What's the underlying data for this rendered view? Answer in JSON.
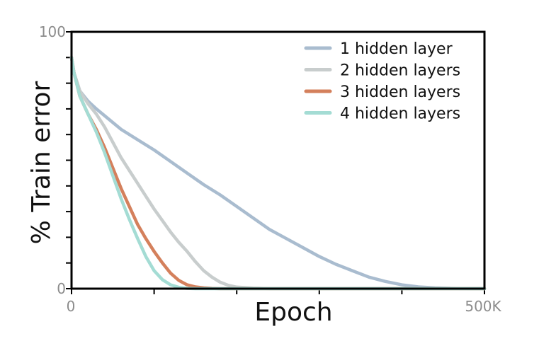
{
  "chart_data": {
    "type": "line",
    "xlabel": "Epoch",
    "ylabel": "% Train error",
    "xlim": [
      0,
      500000
    ],
    "ylim": [
      0,
      100
    ],
    "x_ticks": [
      0,
      100000,
      200000,
      300000,
      400000,
      500000
    ],
    "x_tick_labels": [
      "0",
      "",
      "",
      "",
      "",
      "500K"
    ],
    "y_ticks": [
      0,
      10,
      20,
      30,
      40,
      50,
      60,
      70,
      80,
      90,
      100
    ],
    "y_tick_labels": [
      "0",
      "",
      "",
      "",
      "",
      "",
      "",
      "",
      "",
      "",
      "100"
    ],
    "legend_position": "top-right",
    "series": [
      {
        "name": "1 hidden layer",
        "color": "#a9bccf",
        "x": [
          0,
          3000,
          10000,
          20000,
          30000,
          45000,
          60000,
          80000,
          100000,
          120000,
          140000,
          160000,
          180000,
          200000,
          220000,
          240000,
          260000,
          280000,
          300000,
          320000,
          340000,
          360000,
          380000,
          400000,
          420000,
          440000,
          460000,
          480000,
          500000
        ],
        "y": [
          90,
          84,
          77,
          73,
          70,
          66,
          62,
          58,
          54,
          49.5,
          45,
          40.5,
          36.5,
          32,
          27.5,
          23,
          19.5,
          16,
          12.5,
          9.5,
          7,
          4.5,
          2.8,
          1.5,
          0.7,
          0.3,
          0.1,
          0,
          0
        ]
      },
      {
        "name": "2 hidden layers",
        "color": "#c8cdcd",
        "x": [
          0,
          3000,
          10000,
          20000,
          30000,
          40000,
          50000,
          60000,
          70000,
          80000,
          90000,
          100000,
          110000,
          120000,
          130000,
          140000,
          150000,
          160000,
          170000,
          180000,
          190000,
          200000,
          220000,
          240000,
          260000,
          300000,
          400000,
          500000
        ],
        "y": [
          90,
          84,
          77,
          72,
          68,
          63,
          57,
          51,
          46,
          41,
          36,
          31,
          26.5,
          22,
          18,
          14.5,
          10.5,
          7,
          4.5,
          2.5,
          1.3,
          0.6,
          0.2,
          0,
          0,
          0,
          0,
          0
        ]
      },
      {
        "name": "3 hidden layers",
        "color": "#d4805c",
        "x": [
          0,
          3000,
          10000,
          20000,
          30000,
          40000,
          50000,
          60000,
          70000,
          80000,
          90000,
          100000,
          110000,
          120000,
          130000,
          140000,
          150000,
          160000,
          170000,
          180000,
          200000,
          300000,
          400000,
          500000
        ],
        "y": [
          90,
          84,
          75,
          68,
          62,
          55,
          47,
          39,
          32,
          25,
          19.5,
          14.5,
          10,
          6,
          3.2,
          1.5,
          0.7,
          0.3,
          0.1,
          0,
          0,
          0,
          0,
          0
        ]
      },
      {
        "name": "4 hidden layers",
        "color": "#a4dcd4",
        "x": [
          0,
          3000,
          10000,
          20000,
          30000,
          40000,
          50000,
          60000,
          70000,
          80000,
          90000,
          100000,
          110000,
          120000,
          130000,
          140000,
          150000,
          200000,
          300000,
          400000,
          500000
        ],
        "y": [
          90,
          84,
          75,
          68,
          61,
          53,
          44,
          35,
          27,
          19.5,
          12.5,
          7,
          3.5,
          1.5,
          0.5,
          0.1,
          0,
          0,
          0,
          0,
          0
        ]
      }
    ]
  }
}
